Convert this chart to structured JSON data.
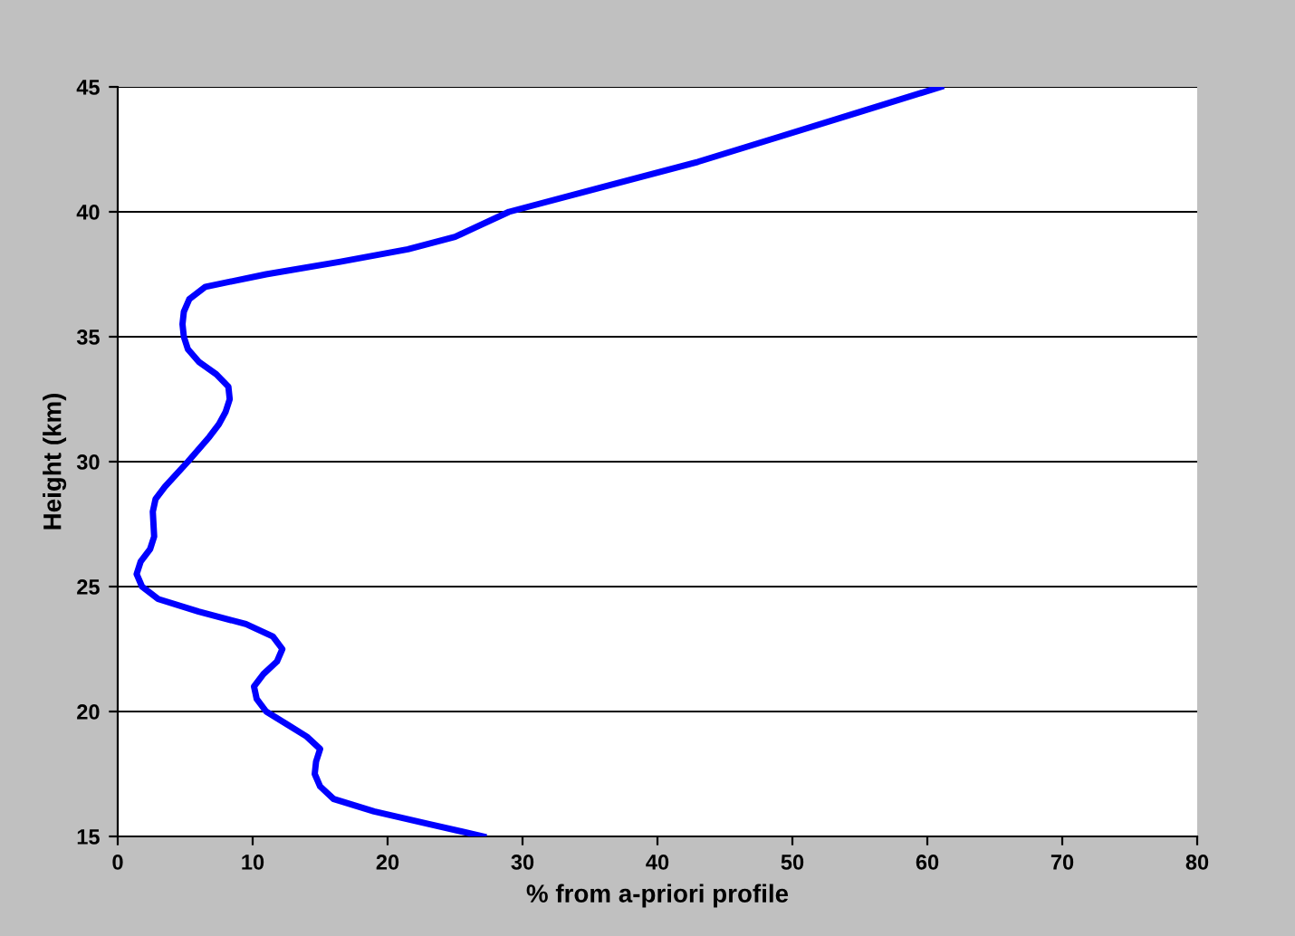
{
  "chart_data": {
    "type": "line",
    "xlabel": "% from a-priori profile",
    "ylabel": "Height (km)",
    "xlim": [
      0,
      80
    ],
    "xticks": [
      0,
      10,
      20,
      30,
      40,
      50,
      60,
      70,
      80
    ],
    "ylim": [
      15,
      45
    ],
    "yticks": [
      15,
      20,
      25,
      30,
      35,
      40,
      45
    ],
    "grid": "y",
    "legend": false,
    "marker": "none",
    "line_style": "solid",
    "series": [
      {
        "color": "#0000ff",
        "x": [
          27.1,
          23,
          19,
          16,
          15,
          14.6,
          14.7,
          15,
          14,
          12.5,
          11,
          10.3,
          10.1,
          10.8,
          11.8,
          12.2,
          11.5,
          9.5,
          6,
          3,
          1.8,
          1.4,
          1.7,
          2.4,
          2.7,
          2.6,
          2.8,
          3.5,
          5.2,
          6.0,
          6.8,
          7.5,
          8,
          8.3,
          8.2,
          7.3,
          6,
          5.2,
          4.9,
          4.8,
          4.9,
          5.3,
          6.5,
          11,
          16.5,
          21.5,
          25,
          29,
          36,
          43,
          49,
          55,
          61
        ],
        "values": [
          15,
          15.5,
          16,
          16.5,
          17,
          17.5,
          18,
          18.5,
          19,
          19.5,
          20,
          20.5,
          21,
          21.5,
          22,
          22.5,
          23,
          23.5,
          24,
          24.5,
          25,
          25.5,
          26,
          26.5,
          27,
          28,
          28.5,
          29,
          30,
          30.5,
          31,
          31.5,
          32,
          32.5,
          33,
          33.5,
          34,
          34.5,
          35,
          35.5,
          36,
          36.5,
          37,
          37.5,
          38,
          38.5,
          39,
          40,
          41,
          42,
          43,
          44,
          45
        ]
      }
    ]
  }
}
